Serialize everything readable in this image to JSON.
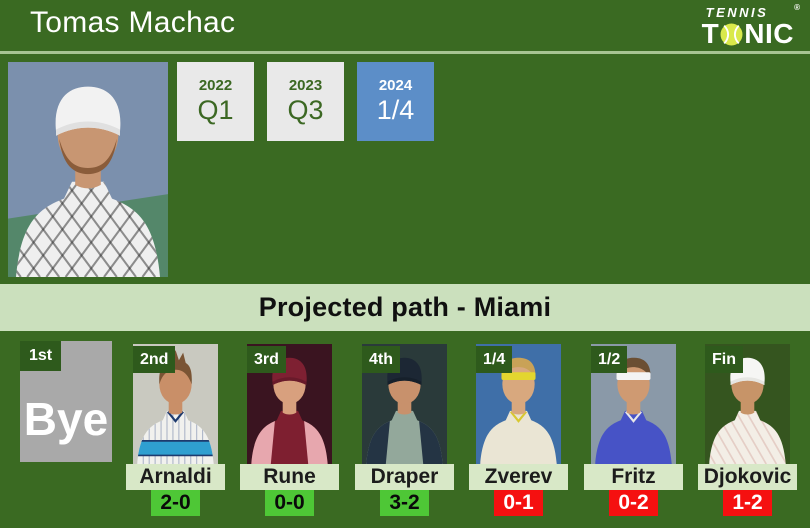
{
  "header": {
    "player_name": "Tomas Machac",
    "logo": {
      "line1": "TENNIS",
      "registered": "®",
      "line2_start": "T",
      "line2_end": "NIC"
    },
    "years": [
      {
        "year": "2022",
        "result": "Q1",
        "highlight": false
      },
      {
        "year": "2023",
        "result": "Q3",
        "highlight": false
      },
      {
        "year": "2024",
        "result": "1/4",
        "highlight": true
      }
    ]
  },
  "banner": {
    "title": "Projected path - Miami"
  },
  "path": {
    "bye": {
      "round": "1st",
      "label": "Bye"
    },
    "opponents": [
      {
        "round": "2nd",
        "name": "Arnaldi",
        "h2h": "2-0",
        "h2h_status": "positive",
        "portrait": "arnaldi"
      },
      {
        "round": "3rd",
        "name": "Rune",
        "h2h": "0-0",
        "h2h_status": "positive",
        "portrait": "rune"
      },
      {
        "round": "4th",
        "name": "Draper",
        "h2h": "3-2",
        "h2h_status": "positive",
        "portrait": "draper"
      },
      {
        "round": "1/4",
        "name": "Zverev",
        "h2h": "0-1",
        "h2h_status": "negative",
        "portrait": "zverev"
      },
      {
        "round": "1/2",
        "name": "Fritz",
        "h2h": "0-2",
        "h2h_status": "negative",
        "portrait": "fritz"
      },
      {
        "round": "Fin",
        "name": "Djokovic",
        "h2h": "1-2",
        "h2h_status": "negative",
        "portrait": "djokovic"
      }
    ]
  },
  "colors": {
    "background_green": "#3a6a22",
    "banner_green": "#cbe0bd",
    "name_plate_green": "#d8e8c7",
    "round_tab_green": "#2e5a1c",
    "positive_badge_green": "#4ec736",
    "negative_badge_red": "#f51010",
    "highlight_blue": "#5c8ec8",
    "year_box_gray": "#e9e9e9",
    "bye_box_gray": "#a9a9a9",
    "divider_light_green": "#a7c493",
    "tennis_ball_yellow": "#d9e94b"
  },
  "portraits": {
    "machac": {
      "bg": "#7b90ad",
      "bg2": "#54876a",
      "skin": "#c89672",
      "shirt": "#efefef",
      "pattern": "crosshatch",
      "pattern_color": "#2b2b2b",
      "headwear": "cap",
      "hw1": "#f2f2f2",
      "hw2": "#e0e0e0",
      "beard": "#8a5c3a"
    },
    "arnaldi": {
      "bg": "#c9c9c0",
      "skin": "#c98f68",
      "shirt": "#f1f1ee",
      "pattern": "pinstripe",
      "pattern_color": "#41588c",
      "chest_band": "#2f9fd0",
      "chest_band_edge": "#1d3a6e",
      "hair": "#7a5434",
      "hair_style": "spiky",
      "collar": "#1d3a6e"
    },
    "rune": {
      "bg": "#3a1420",
      "skin": "#d8a07e",
      "shirt": "#7e1f30",
      "sleeves": "#e7a7ae",
      "headwear": "cap",
      "hw1": "#7e2032",
      "hw2": "#691a2a",
      "hair": "#d9b36a"
    },
    "draper": {
      "bg": "#2a3a3a",
      "skin": "#c8916c",
      "shirt": "#93a89b",
      "sleeves": "#243444",
      "headwear": "cap",
      "hw1": "#1c2734",
      "hw2": "#16202b",
      "hair": "#5a4630"
    },
    "zverev": {
      "bg": "#3f6fa8",
      "skin": "#d8a87e",
      "shirt": "#eae5d4",
      "headwear": "band",
      "hw1": "#e3d62f",
      "hair": "#c9a257",
      "collar": "#d8c830"
    },
    "fritz": {
      "bg": "#8a99a8",
      "skin": "#cf9a72",
      "shirt": "#4753c6",
      "headwear": "band",
      "hw1": "#f4f4f4",
      "hair": "#6b4f33",
      "collar": "#e8e8e8"
    },
    "djokovic": {
      "bg": "#35551f",
      "skin": "#c79468",
      "shirt": "#f3eee6",
      "pattern": "diag",
      "pattern_color": "#cf9f96",
      "headwear": "cap",
      "hw1": "#f6f6f4",
      "hw2": "#e6e6e2",
      "hair": "#5f4a33"
    }
  }
}
